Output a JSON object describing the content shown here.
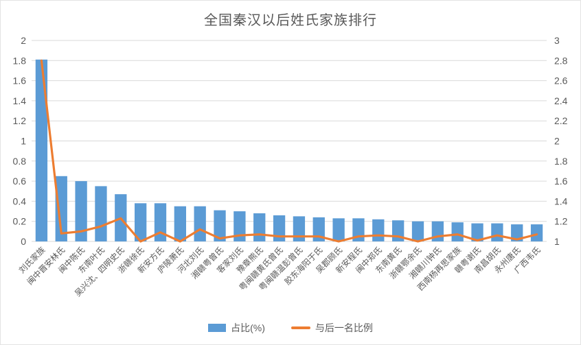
{
  "chart_data": {
    "type": "bar",
    "combo": "bar+line",
    "title": "全国秦汉以后姓氏家族排行",
    "categories": [
      "刘氏家族",
      "闽中晋安林氏",
      "闽中陈氏",
      "东南叶氏",
      "吴兴沈、四明史氏",
      "浙赣徐氏",
      "新安方氏",
      "庐陵萧氏",
      "河北刘氏",
      "湘赣粤曾氏",
      "客家刘氏",
      "豫章熊氏",
      "粤闽赣黄氏曾氏",
      "粤闽赣温彭曾氏",
      "胶东海阳于氏",
      "吴郡顾氏",
      "新安程氏",
      "闽中郑氏",
      "东南黄氏",
      "浙赣鄂余氏",
      "湘赣川钟氏",
      "西南杨再思家族",
      "赣粤谢氏",
      "南昌胡氏",
      "永州唐氏",
      "广西韦氏"
    ],
    "series": [
      {
        "name": "占比(%)",
        "type": "bar",
        "axis": "left",
        "color": "#5B9BD5",
        "values": [
          1.81,
          0.65,
          0.6,
          0.55,
          0.47,
          0.38,
          0.38,
          0.35,
          0.35,
          0.31,
          0.3,
          0.28,
          0.26,
          0.25,
          0.24,
          0.23,
          0.23,
          0.22,
          0.21,
          0.2,
          0.2,
          0.19,
          0.18,
          0.18,
          0.17,
          0.17
        ]
      },
      {
        "name": "与后一名比例",
        "type": "line",
        "axis": "right",
        "color": "#ED7D31",
        "values": [
          2.8,
          1.08,
          1.1,
          1.15,
          1.23,
          1.0,
          1.09,
          1.0,
          1.12,
          1.03,
          1.06,
          1.07,
          1.05,
          1.05,
          1.05,
          1.0,
          1.05,
          1.06,
          1.05,
          1.0,
          1.05,
          1.07,
          1.01,
          1.06,
          1.02,
          1.07
        ]
      }
    ],
    "left_axis": {
      "min": 0,
      "max": 2,
      "step": 0.2,
      "ticks": [
        "0",
        "0.2",
        "0.4",
        "0.6",
        "0.8",
        "1",
        "1.2",
        "1.4",
        "1.6",
        "1.8",
        "2"
      ]
    },
    "right_axis": {
      "min": 1,
      "max": 3,
      "step": 0.2,
      "ticks": [
        "1",
        "1.2",
        "1.4",
        "1.6",
        "1.8",
        "2",
        "2.2",
        "2.4",
        "2.6",
        "2.8",
        "3"
      ]
    },
    "grid": true,
    "legend_position": "bottom",
    "x_label_rotation": -45,
    "colors": {
      "bar": "#5B9BD5",
      "line": "#ED7D31",
      "gridline": "#D9D9D9",
      "text": "#595959",
      "background": "#FFFFFF"
    }
  }
}
